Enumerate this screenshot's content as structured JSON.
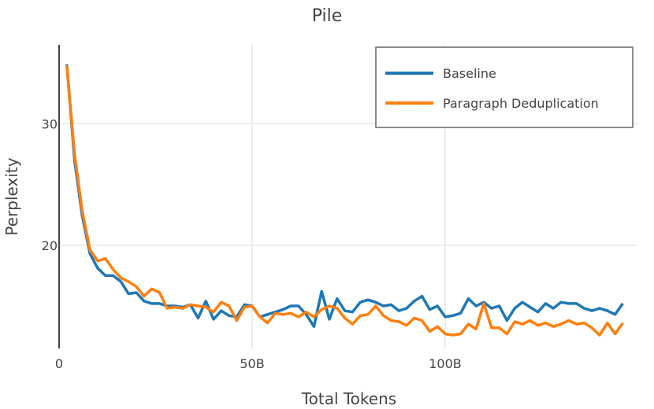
{
  "chart_data": {
    "type": "line",
    "title": "Pile",
    "xlabel": "Total Tokens",
    "ylabel": "Perplexity",
    "xlim": [
      0,
      150
    ],
    "ylim": [
      11.5,
      36.5
    ],
    "grid": true,
    "legend_position": "top-right",
    "x_ticks": [
      {
        "value": 0,
        "label": "0"
      },
      {
        "value": 50,
        "label": "50B"
      },
      {
        "value": 100,
        "label": "100B"
      }
    ],
    "y_ticks": [
      {
        "value": 20,
        "label": "20"
      },
      {
        "value": 30,
        "label": "30"
      }
    ],
    "x": [
      2,
      4,
      6,
      8,
      10,
      12,
      14,
      16,
      18,
      20,
      22,
      24,
      26,
      28,
      30,
      32,
      34,
      36,
      38,
      40,
      42,
      44,
      46,
      48,
      50,
      52,
      54,
      56,
      58,
      60,
      62,
      64,
      66,
      68,
      70,
      72,
      74,
      76,
      78,
      80,
      82,
      84,
      86,
      88,
      90,
      92,
      94,
      96,
      98,
      100,
      102,
      104,
      106,
      108,
      110,
      112,
      114,
      116,
      118,
      120,
      122,
      124,
      126,
      128,
      130,
      132,
      134,
      136,
      138,
      140,
      142,
      144,
      146
    ],
    "series": [
      {
        "name": "Baseline",
        "color": "#1f77b4",
        "values": [
          34.9,
          27.0,
          22.4,
          19.3,
          18.1,
          17.5,
          17.5,
          17.0,
          16.0,
          16.1,
          15.4,
          15.2,
          15.2,
          15.0,
          15.0,
          14.9,
          15.1,
          14.0,
          15.4,
          13.9,
          14.6,
          14.2,
          14.1,
          15.1,
          15.0,
          14.1,
          14.3,
          14.5,
          14.7,
          15.0,
          15.0,
          14.3,
          13.3,
          16.2,
          13.9,
          15.6,
          14.6,
          14.5,
          15.3,
          15.5,
          15.3,
          15.0,
          15.1,
          14.6,
          14.8,
          15.4,
          15.8,
          14.7,
          15.0,
          14.1,
          14.2,
          14.4,
          15.6,
          15.0,
          15.3,
          14.8,
          15.0,
          13.8,
          14.8,
          15.3,
          14.9,
          14.5,
          15.2,
          14.8,
          15.3,
          15.2,
          15.2,
          14.8,
          14.6,
          14.8,
          14.6,
          14.3,
          15.2
        ]
      },
      {
        "name": "Paragraph Deduplication",
        "color": "#ff7f0e",
        "values": [
          34.8,
          27.5,
          22.8,
          19.6,
          18.7,
          18.9,
          18.0,
          17.3,
          17.0,
          16.6,
          15.8,
          16.4,
          16.1,
          14.8,
          14.9,
          14.8,
          15.1,
          15.0,
          14.9,
          14.5,
          15.3,
          15.0,
          13.8,
          14.9,
          15.0,
          14.1,
          13.6,
          14.4,
          14.3,
          14.4,
          14.1,
          14.5,
          14.1,
          14.7,
          15.0,
          14.8,
          14.0,
          13.5,
          14.2,
          14.3,
          15.0,
          14.2,
          13.8,
          13.7,
          13.4,
          14.0,
          13.8,
          12.9,
          13.3,
          12.7,
          12.6,
          12.7,
          13.5,
          13.1,
          15.2,
          13.2,
          13.2,
          12.7,
          13.7,
          13.5,
          13.8,
          13.4,
          13.6,
          13.3,
          13.5,
          13.8,
          13.5,
          13.6,
          13.2,
          12.6,
          13.6,
          12.7,
          13.6
        ]
      }
    ]
  }
}
